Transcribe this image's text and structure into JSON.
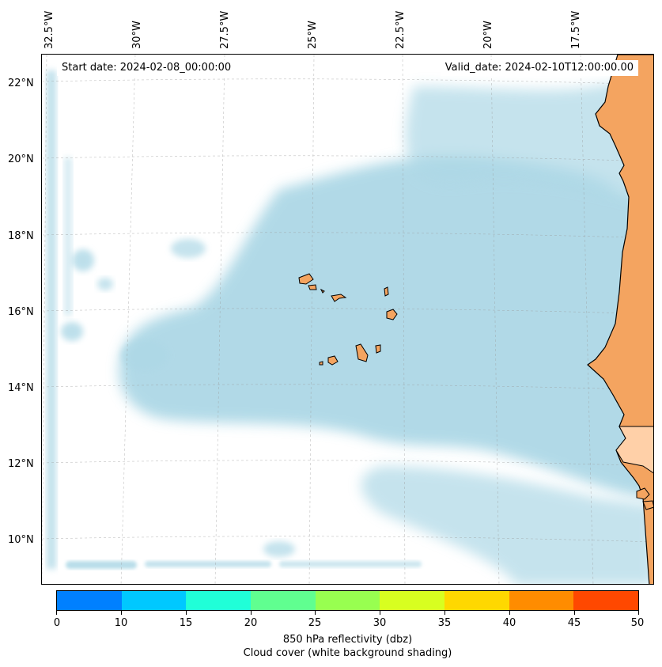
{
  "map": {
    "lon_labels": [
      "32.5°W",
      "30°W",
      "27.5°W",
      "25°W",
      "22.5°W",
      "20°W",
      "17.5°W"
    ],
    "lat_labels": [
      "22°N",
      "20°N",
      "18°N",
      "16°N",
      "14°N",
      "12°N",
      "10°N"
    ],
    "start_date": "Start date: 2024-02-08_00:00:00",
    "valid_date": "Valid_date: 2024-02-10T12:00:00.00",
    "colors": {
      "cloud": "#add8e6",
      "land": "#f4a460",
      "land_light": "#ffd0a8",
      "coast": "#000000"
    }
  },
  "colorbar": {
    "ticks": [
      "0",
      "10",
      "15",
      "20",
      "25",
      "30",
      "35",
      "40",
      "45",
      "50"
    ],
    "colors": [
      "#0080ff",
      "#00c8ff",
      "#20ffd8",
      "#60ff90",
      "#98ff50",
      "#d8ff20",
      "#ffd800",
      "#ff8c00",
      "#ff4800"
    ],
    "label_line1": "850 hPa reflectivity (dbz)",
    "label_line2": "Cloud cover (white background shading)"
  }
}
